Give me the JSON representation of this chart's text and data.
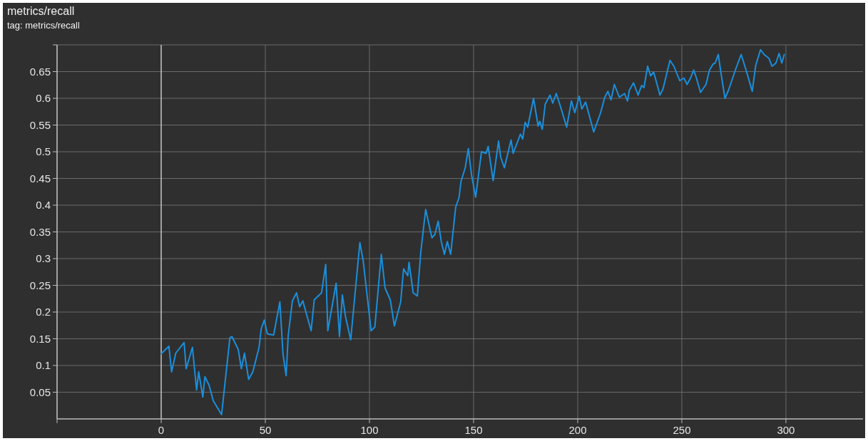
{
  "chart_data": {
    "type": "line",
    "title": "metrics/recall",
    "subtitle": "tag: metrics/recall",
    "xlim": [
      -50,
      337
    ],
    "xticks": [
      {
        "value": -50,
        "label": null
      },
      0,
      50,
      100,
      150,
      200,
      250,
      300
    ],
    "ylim": [
      0,
      0.7
    ],
    "yticks": [
      0.05,
      0.1,
      0.15,
      0.2,
      0.25,
      0.3,
      0.35,
      0.4,
      0.45,
      0.5,
      0.55,
      0.6,
      0.65,
      {
        "value": 0.7,
        "label": null
      }
    ],
    "grid": true,
    "line_style": "solid",
    "series": [
      {
        "color": "#1a8fdc",
        "x": [
          0,
          3.7,
          5,
          7,
          11,
          12,
          15,
          17,
          18,
          20,
          21,
          23,
          25,
          29,
          33,
          34,
          37,
          38.5,
          40,
          42,
          44,
          47,
          48,
          49.5,
          51,
          54,
          57,
          58.5,
          60,
          61,
          63,
          65,
          66.5,
          68,
          72,
          73.5,
          77,
          79,
          80,
          84,
          85.6,
          87,
          88.5,
          91,
          95.4,
          97,
          100.8,
          102.6,
          105.7,
          107.5,
          110,
          112,
          115,
          116.4,
          118.4,
          119,
          121,
          123,
          124.7,
          127,
          130,
          131.4,
          133,
          134.5,
          136,
          137.4,
          139,
          141.4,
          143,
          144,
          146,
          147.5,
          149,
          151,
          153.8,
          156,
          157,
          159.4,
          162,
          163,
          164.8,
          168,
          169,
          172.5,
          173.6,
          174.8,
          176,
          178.8,
          181,
          181.8,
          183,
          184.4,
          186.7,
          188,
          189.7,
          191.8,
          194.7,
          197,
          198.6,
          200.7,
          202,
          203.8,
          207.7,
          211,
          213,
          214.5,
          216,
          217.6,
          220,
          222.5,
          223.9,
          224.8,
          226.8,
          229,
          230.7,
          231.8,
          233.6,
          235,
          236.5,
          239.5,
          241,
          244.3,
          246.2,
          249,
          251,
          252.5,
          254.2,
          255.7,
          257,
          259,
          261.6,
          263.3,
          265,
          266,
          267.5,
          268.5,
          270.7,
          272.4,
          274.4,
          275.9,
          278.5,
          281,
          283.8,
          285.5,
          287.8,
          289.5,
          291.8,
          293.3,
          295.2,
          296.7,
          298,
          299.2
        ],
        "values": [
          0.122,
          0.136,
          0.088,
          0.123,
          0.143,
          0.094,
          0.134,
          0.054,
          0.088,
          0.041,
          0.079,
          0.063,
          0.034,
          0.008,
          0.152,
          0.154,
          0.13,
          0.094,
          0.123,
          0.074,
          0.088,
          0.134,
          0.168,
          0.185,
          0.159,
          0.157,
          0.219,
          0.121,
          0.081,
          0.156,
          0.221,
          0.236,
          0.21,
          0.221,
          0.165,
          0.223,
          0.236,
          0.289,
          0.165,
          0.254,
          0.154,
          0.232,
          0.192,
          0.148,
          0.33,
          0.296,
          0.165,
          0.172,
          0.308,
          0.245,
          0.223,
          0.174,
          0.219,
          0.281,
          0.268,
          0.293,
          0.236,
          0.23,
          0.314,
          0.392,
          0.339,
          0.345,
          0.37,
          0.332,
          0.308,
          0.332,
          0.308,
          0.396,
          0.414,
          0.445,
          0.47,
          0.506,
          0.457,
          0.415,
          0.5,
          0.497,
          0.51,
          0.446,
          0.52,
          0.49,
          0.47,
          0.522,
          0.497,
          0.533,
          0.524,
          0.555,
          0.546,
          0.6,
          0.548,
          0.557,
          0.542,
          0.589,
          0.606,
          0.591,
          0.609,
          0.584,
          0.546,
          0.595,
          0.573,
          0.604,
          0.58,
          0.593,
          0.537,
          0.573,
          0.602,
          0.613,
          0.597,
          0.626,
          0.602,
          0.609,
          0.595,
          0.615,
          0.629,
          0.606,
          0.624,
          0.62,
          0.66,
          0.642,
          0.649,
          0.606,
          0.618,
          0.671,
          0.66,
          0.633,
          0.638,
          0.626,
          0.638,
          0.653,
          0.638,
          0.611,
          0.626,
          0.653,
          0.664,
          0.666,
          0.682,
          0.655,
          0.6,
          0.615,
          0.638,
          0.655,
          0.682,
          0.651,
          0.613,
          0.662,
          0.691,
          0.682,
          0.675,
          0.66,
          0.666,
          0.684,
          0.666,
          0.682
        ]
      }
    ]
  }
}
